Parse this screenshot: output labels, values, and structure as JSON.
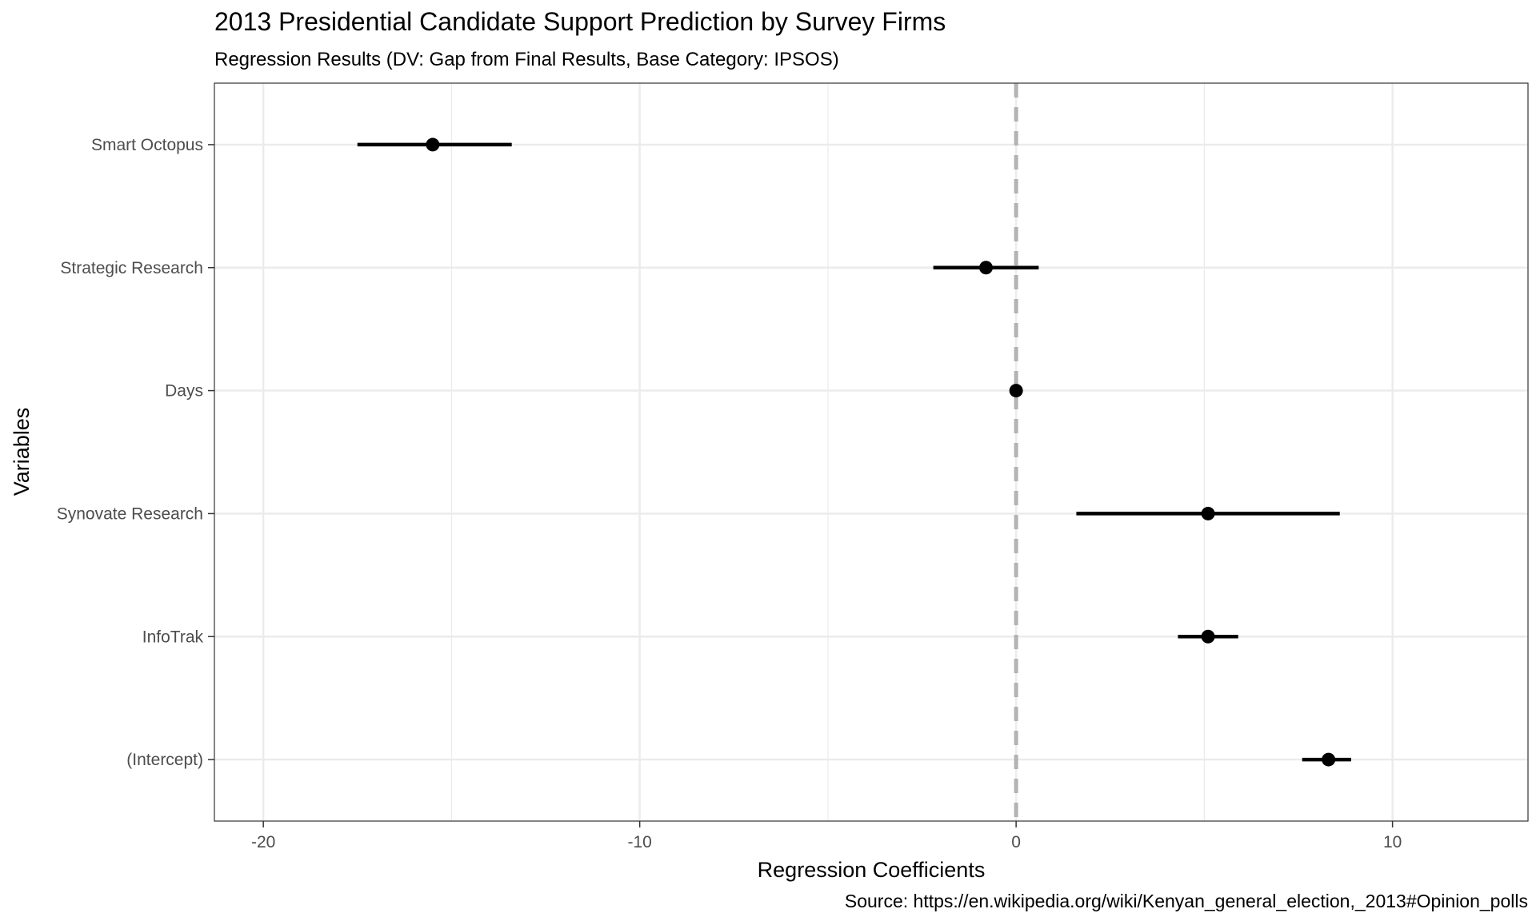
{
  "chart_data": {
    "type": "scatter",
    "title": "2013 Presidential Candidate Support Prediction by Survey Firms",
    "subtitle": "Regression Results (DV: Gap from Final Results, Base Category: IPSOS)",
    "xlabel": "Regression Coefficients",
    "ylabel": "Variables",
    "caption": "Source: https://en.wikipedia.org/wiki/Kenyan_general_election,_2013#Opinion_polls",
    "xlim": [
      -21.3,
      13.6
    ],
    "x_ticks": [
      -20,
      -10,
      0,
      10
    ],
    "x_tick_labels": [
      "-20",
      "-10",
      "0",
      "10"
    ],
    "reference_line": {
      "x": 0,
      "style": "dashed",
      "color": "#b3b3b3"
    },
    "grid": true,
    "categories": [
      "Smart Octopus",
      "Strategic Research",
      "Days",
      "Synovate Research",
      "InfoTrak",
      "(Intercept)"
    ],
    "estimates": [
      -15.5,
      -0.8,
      0.0,
      5.1,
      5.1,
      8.3
    ],
    "ci_low": [
      -17.5,
      -2.2,
      0.0,
      1.6,
      4.3,
      7.6
    ],
    "ci_high": [
      -13.4,
      0.6,
      0.0,
      8.6,
      5.9,
      8.9
    ],
    "colors": {
      "point": "#000000",
      "grid": "#ebebeb",
      "panel_border": "#333333"
    }
  }
}
